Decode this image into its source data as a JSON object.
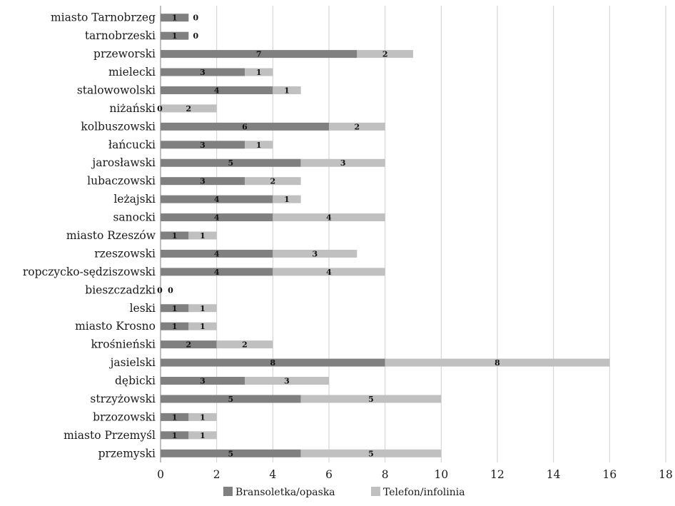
{
  "chart_data": {
    "type": "bar",
    "orientation": "horizontal",
    "stacked": true,
    "categories": [
      "miasto Tarnobrzeg",
      "tarnobrzeski",
      "przeworski",
      "mielecki",
      "stalowowolski",
      "niżański",
      "kolbuszowski",
      "łańcucki",
      "jarosławski",
      "lubaczowski",
      "leżajski",
      "sanocki",
      "miasto Rzeszów",
      "rzeszowski",
      "ropczycko-sędziszowski",
      "bieszczadzki",
      "leski",
      "miasto Krosno",
      "krośnieński",
      "jasielski",
      "dębicki",
      "strzyżowski",
      "brzozowski",
      "miasto Przemyśl",
      "przemyski"
    ],
    "series": [
      {
        "name": "Bransoletka/opaska",
        "color": "#808080",
        "values": [
          1,
          1,
          7,
          3,
          4,
          0,
          6,
          3,
          5,
          3,
          4,
          4,
          1,
          4,
          4,
          0,
          1,
          1,
          2,
          8,
          3,
          5,
          1,
          1,
          5
        ]
      },
      {
        "name": "Telefon/infolinia",
        "color": "#c0c0c0",
        "values": [
          0,
          0,
          2,
          1,
          1,
          2,
          2,
          1,
          3,
          2,
          1,
          4,
          1,
          3,
          4,
          0,
          1,
          1,
          2,
          8,
          3,
          5,
          1,
          1,
          5
        ]
      }
    ],
    "xlim": [
      0,
      18
    ],
    "x_ticks": [
      "0",
      "2",
      "4",
      "6",
      "8",
      "10",
      "12",
      "14",
      "16",
      "18"
    ],
    "grid": true,
    "legend_position": "bottom",
    "xlabel": "",
    "ylabel": "",
    "title": ""
  }
}
